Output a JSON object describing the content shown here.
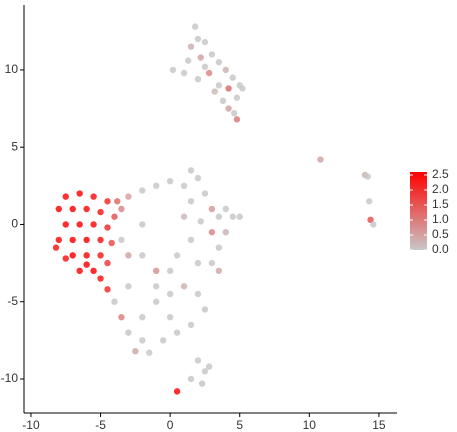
{
  "chart_data": {
    "type": "scatter",
    "x": [
      1.8,
      2.0,
      1.5,
      2.5,
      3.0,
      2.2,
      3.5,
      4.0,
      0.2,
      1.0,
      2.8,
      4.5,
      5.0,
      4.2,
      3.5,
      2.0,
      3.8,
      4.8,
      4.2,
      4.8,
      5.2,
      3.2,
      2.5,
      1.3,
      4.6,
      -3.5,
      -3,
      -2,
      -1,
      0,
      1,
      1.5,
      2,
      2.5,
      3,
      3.5,
      4,
      4.5,
      5,
      4,
      3.5,
      3,
      3.5,
      2,
      1.5,
      1,
      1.5,
      0.5,
      0,
      -1,
      -2,
      -3,
      -3.5,
      -3,
      -4,
      -3.5,
      -2,
      -1,
      0,
      1,
      2,
      2.5,
      1.5,
      0.5,
      -0.5,
      -2,
      -3,
      -1.5,
      -2.5,
      0,
      -1,
      3,
      2.2,
      -2,
      2,
      2.5,
      1.5,
      2.8,
      0.5,
      2.3,
      -7.5,
      -6.5,
      -5.5,
      -4.5,
      -3.8,
      -8,
      -7,
      -6,
      -5,
      -4,
      -7.5,
      -6.5,
      -5.5,
      -4.5,
      -8,
      -7,
      -6,
      -5,
      -4.2,
      -8.2,
      -7,
      -6,
      -5,
      -4.5,
      -6.5,
      -5.5,
      -5,
      -4.5,
      -6,
      -7.5,
      10.8,
      14,
      14.2,
      14.3,
      14.4,
      14.6
    ],
    "y": [
      12.8,
      12.0,
      11.5,
      11.8,
      11.0,
      10.8,
      10.5,
      10.0,
      10.0,
      9.8,
      9.8,
      9.5,
      9.0,
      8.8,
      9.0,
      9.4,
      8.0,
      8.2,
      7.5,
      6.8,
      8.8,
      8.6,
      10.2,
      10.6,
      7.2,
      1.0,
      1.8,
      2.2,
      2.5,
      2.8,
      2.5,
      3.5,
      3,
      2,
      1,
      0.5,
      1,
      0.5,
      0.5,
      -0.5,
      -1.5,
      -2.5,
      -3,
      -2.5,
      -1,
      0.5,
      1.5,
      -2,
      -3,
      -3,
      -2,
      -2,
      -1,
      -4,
      -5,
      -6,
      -6,
      -5,
      -4.5,
      -4,
      -4.5,
      -5.5,
      -6.5,
      -7,
      -7.5,
      -7.5,
      -7,
      -8.3,
      -8.2,
      -6,
      -4,
      -0.5,
      0.2,
      0,
      -8.8,
      -9.5,
      -10,
      -9.2,
      -10.8,
      -10.3,
      1.8,
      2.0,
      1.8,
      1.5,
      1.5,
      1,
      1,
      1,
      0.8,
      0.5,
      0,
      0,
      0,
      -0.2,
      -1,
      -1,
      -1,
      -1,
      -1.2,
      -1.5,
      -2,
      -2,
      -2,
      -2.5,
      -3,
      -3,
      -3.5,
      -4.2,
      -2.6,
      -2.2,
      4.2,
      3.2,
      3.1,
      1.5,
      0.3,
      0
    ],
    "values": [
      0,
      0,
      0.3,
      0,
      0,
      0.5,
      0,
      0.3,
      0,
      0,
      0.8,
      0,
      0,
      1.2,
      0,
      0,
      0,
      0,
      0.5,
      1.0,
      0,
      0.2,
      0,
      0,
      0,
      0.8,
      0.5,
      0,
      0,
      0,
      0,
      0,
      0,
      0,
      0.6,
      0,
      0,
      0,
      0,
      0.3,
      0,
      0,
      0.4,
      0,
      0,
      0.2,
      0,
      0,
      0,
      0.7,
      0,
      0.5,
      0,
      0,
      0,
      0.9,
      0,
      0,
      0,
      0.3,
      0,
      0,
      0,
      0,
      0,
      0,
      0,
      0,
      0.4,
      0,
      0,
      0.8,
      0,
      0,
      0,
      0,
      0,
      0,
      2.5,
      0,
      2.4,
      2.5,
      2.3,
      2.0,
      1.2,
      2.5,
      2.5,
      2.4,
      2.2,
      1.5,
      2.5,
      2.5,
      2.4,
      2.0,
      2.4,
      2.5,
      2.5,
      2.3,
      1.6,
      2.2,
      2.5,
      2.4,
      2.2,
      1.8,
      2.4,
      2.5,
      2.3,
      2.0,
      2.5,
      2.3,
      0.5,
      0.3,
      0,
      0,
      1.5,
      0
    ],
    "color_low": "#c8c8c8",
    "color_high": "#ff0000",
    "xlim": [
      -10.5,
      16.3
    ],
    "ylim": [
      -12.2,
      14.2
    ],
    "xticks": [
      -10,
      -5,
      0,
      5,
      10,
      15
    ],
    "yticks": [
      -10,
      -5,
      0,
      5,
      10
    ],
    "clim": [
      0,
      2.6
    ],
    "cticks": [
      {
        "value": 0,
        "label": "0.0"
      },
      {
        "value": 0.5,
        "label": "0.5"
      },
      {
        "value": 1,
        "label": "1.0"
      },
      {
        "value": 1.5,
        "label": "1.5"
      },
      {
        "value": 2,
        "label": "2.0"
      },
      {
        "value": 2.5,
        "label": "2.5"
      }
    ]
  }
}
